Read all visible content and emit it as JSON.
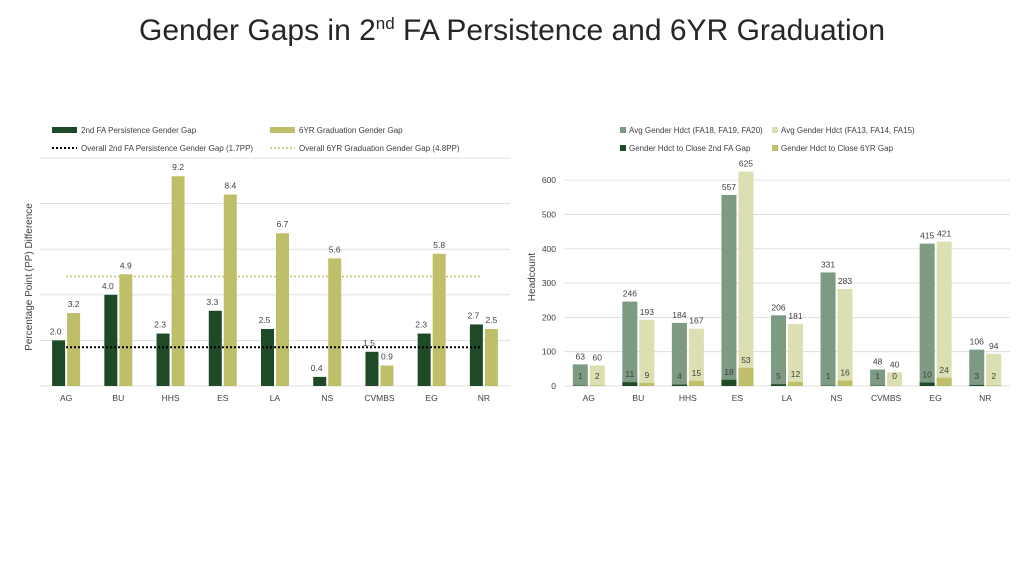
{
  "slide": {
    "title_pre": "Gender Gaps in 2",
    "title_sup": "nd",
    "title_post": " FA Persistence and 6YR Graduation"
  },
  "colors": {
    "dark_green": "#1f4a28",
    "olive": "#bfbf6a",
    "gray_green": "#7d9a82",
    "pale_olive": "#dcdfb2",
    "axis_text": "#404040",
    "grid": "#d9d9d9"
  },
  "chart_data": [
    {
      "type": "bar",
      "categories": [
        "AG",
        "BU",
        "HHS",
        "ES",
        "LA",
        "NS",
        "CVMBS",
        "EG",
        "NR"
      ],
      "series": [
        {
          "name": "2nd FA Persistence Gender Gap",
          "values": [
            2.0,
            4.0,
            2.3,
            3.3,
            2.5,
            0.4,
            1.5,
            2.3,
            2.7
          ]
        },
        {
          "name": "6YR Graduation Gender Gap",
          "values": [
            3.2,
            4.9,
            9.2,
            8.4,
            6.7,
            5.6,
            0.9,
            5.8,
            2.5
          ]
        }
      ],
      "data_labels": {
        "persistence": [
          "2.0",
          "4.0",
          "2.3",
          "3.3",
          "2.5",
          "0.4",
          "1.5",
          "2.3",
          "2.7"
        ],
        "graduation": [
          "3.2",
          "4.9",
          "9.2",
          "8.4",
          "6.7",
          "5.6",
          "0.9",
          "5.8",
          "2.5"
        ]
      },
      "reference_lines": [
        {
          "name": "Overall 2nd FA Persistence Gender Gap  (1.7PP)",
          "value": 1.7
        },
        {
          "name": "Overall 6YR Graduation Gender Gap (4.8PP)",
          "value": 4.8
        }
      ],
      "ylabel": "Percentage Point (PP) Difference",
      "ylim": [
        0,
        10
      ],
      "grid": true,
      "legend": "top"
    },
    {
      "type": "bar",
      "categories": [
        "AG",
        "BU",
        "HHS",
        "ES",
        "LA",
        "NS",
        "CVMBS",
        "EG",
        "NR"
      ],
      "series": [
        {
          "name": "Avg Gender Hdct (FA18, FA19, FA20)",
          "values": [
            63,
            246,
            184,
            557,
            206,
            331,
            48,
            415,
            106
          ]
        },
        {
          "name": "Avg Gender Hdct (FA13, FA14, FA15)",
          "values": [
            60,
            193,
            167,
            625,
            181,
            283,
            40,
            421,
            94
          ]
        },
        {
          "name": "Gender Hdct to Close 2nd FA Gap",
          "values": [
            1,
            11,
            4,
            18,
            5,
            1,
            1,
            10,
            3
          ]
        },
        {
          "name": "Gender Hdct to Close 6YR Gap",
          "values": [
            2,
            9,
            15,
            53,
            12,
            16,
            0,
            24,
            2
          ]
        }
      ],
      "yticks": [
        0,
        100,
        200,
        300,
        400,
        500,
        600
      ],
      "ylabel": "Headcount",
      "ylim": [
        0,
        650
      ],
      "grid": true,
      "legend": "top"
    }
  ]
}
